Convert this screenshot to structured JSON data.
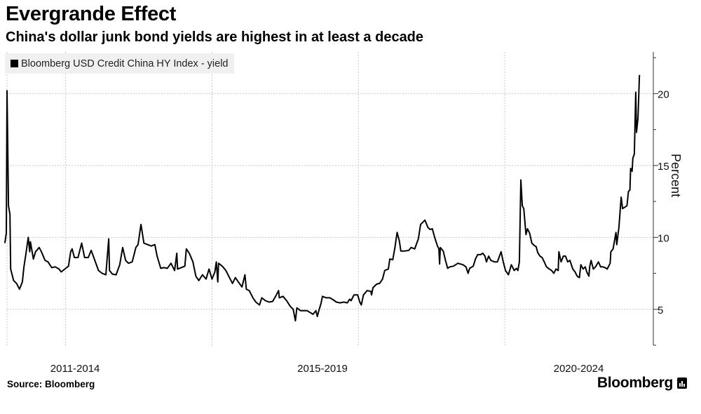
{
  "header": {
    "title": "Evergrande Effect",
    "subtitle": "China's dollar junk bond yields are highest in at least a decade"
  },
  "footer": {
    "source": "Source: Bloomberg",
    "brand": "Bloomberg"
  },
  "chart_data": {
    "type": "line",
    "title": "Evergrande Effect",
    "subtitle": "China's dollar junk bond yields are highest in at least a decade",
    "ylabel": "Percent",
    "xlabel": "",
    "legend": {
      "placement": "top-left",
      "entries": [
        "Bloomberg USD Credit China HY Index - yield"
      ]
    },
    "xlim": [
      2013.2,
      2022.03
    ],
    "ylim": [
      2.5,
      22.9
    ],
    "y_axis_side": "right",
    "y_ticks": [
      5,
      10,
      15,
      20
    ],
    "y_tick_labels": [
      "5",
      "10",
      "15",
      "20"
    ],
    "x_gridlines": [
      2014,
      2016,
      2018,
      2020
    ],
    "x_tick_labels": [
      {
        "label": "2011-2014",
        "at": 2014.13
      },
      {
        "label": "2015-2019",
        "at": 2017.51
      },
      {
        "label": "2020-2024",
        "at": 2021.01
      }
    ],
    "grid": true,
    "colors": {
      "line": "#000000",
      "grid": "#c8c8c8",
      "legend_bg": "#f0f0f0"
    },
    "series": [
      {
        "name": "Bloomberg USD Credit China HY Index - yield",
        "points": [
          [
            2013.17,
            9.6
          ],
          [
            2013.19,
            10.3
          ],
          [
            2013.2,
            20.2
          ],
          [
            2013.21,
            16.6
          ],
          [
            2013.22,
            12.2
          ],
          [
            2013.24,
            11.6
          ],
          [
            2013.25,
            7.8
          ],
          [
            2013.29,
            7.0
          ],
          [
            2013.33,
            6.8
          ],
          [
            2013.37,
            6.4
          ],
          [
            2013.41,
            6.9
          ],
          [
            2013.43,
            7.9
          ],
          [
            2013.46,
            8.9
          ],
          [
            2013.49,
            10.0
          ],
          [
            2013.51,
            9.0
          ],
          [
            2013.52,
            9.7
          ],
          [
            2013.56,
            8.5
          ],
          [
            2013.59,
            9.0
          ],
          [
            2013.64,
            9.3
          ],
          [
            2013.67,
            9.0
          ],
          [
            2013.72,
            8.4
          ],
          [
            2013.76,
            8.3
          ],
          [
            2013.81,
            7.9
          ],
          [
            2013.86,
            7.95
          ],
          [
            2013.91,
            7.8
          ],
          [
            2013.94,
            7.6
          ],
          [
            2013.99,
            7.8
          ],
          [
            2014.04,
            8.0
          ],
          [
            2014.07,
            9.0
          ],
          [
            2014.09,
            9.2
          ],
          [
            2014.12,
            8.6
          ],
          [
            2014.17,
            8.6
          ],
          [
            2014.22,
            9.6
          ],
          [
            2014.26,
            8.6
          ],
          [
            2014.31,
            8.6
          ],
          [
            2014.35,
            9.1
          ],
          [
            2014.4,
            8.4
          ],
          [
            2014.45,
            7.7
          ],
          [
            2014.5,
            7.5
          ],
          [
            2014.55,
            7.4
          ],
          [
            2014.59,
            9.9
          ],
          [
            2014.6,
            7.7
          ],
          [
            2014.64,
            7.45
          ],
          [
            2014.69,
            7.4
          ],
          [
            2014.74,
            8.1
          ],
          [
            2014.78,
            9.3
          ],
          [
            2014.82,
            8.4
          ],
          [
            2014.86,
            8.2
          ],
          [
            2014.91,
            8.3
          ],
          [
            2014.96,
            9.3
          ],
          [
            2014.99,
            9.5
          ],
          [
            2015.03,
            10.9
          ],
          [
            2015.07,
            9.6
          ],
          [
            2015.12,
            9.5
          ],
          [
            2015.17,
            9.4
          ],
          [
            2015.22,
            9.5
          ],
          [
            2015.25,
            8.7
          ],
          [
            2015.3,
            7.85
          ],
          [
            2015.34,
            7.9
          ],
          [
            2015.39,
            7.85
          ],
          [
            2015.44,
            8.2
          ],
          [
            2015.49,
            7.7
          ],
          [
            2015.52,
            8.9
          ],
          [
            2015.53,
            7.8
          ],
          [
            2015.58,
            7.9
          ],
          [
            2015.63,
            8.0
          ],
          [
            2015.65,
            9.2
          ],
          [
            2015.69,
            8.9
          ],
          [
            2015.74,
            8.3
          ],
          [
            2015.78,
            7.3
          ],
          [
            2015.82,
            7.0
          ],
          [
            2015.87,
            7.4
          ],
          [
            2015.92,
            7.1
          ],
          [
            2015.96,
            7.8
          ],
          [
            2016.0,
            7.1
          ],
          [
            2016.04,
            7.6
          ],
          [
            2016.06,
            8.3
          ],
          [
            2016.08,
            6.9
          ],
          [
            2016.09,
            8.2
          ],
          [
            2016.14,
            8.0
          ],
          [
            2016.19,
            7.7
          ],
          [
            2016.24,
            7.2
          ],
          [
            2016.28,
            6.8
          ],
          [
            2016.32,
            7.2
          ],
          [
            2016.36,
            6.9
          ],
          [
            2016.41,
            6.55
          ],
          [
            2016.45,
            7.4
          ],
          [
            2016.47,
            6.4
          ],
          [
            2016.51,
            6.3
          ],
          [
            2016.56,
            5.8
          ],
          [
            2016.6,
            5.5
          ],
          [
            2016.65,
            5.3
          ],
          [
            2016.68,
            5.8
          ],
          [
            2016.73,
            5.6
          ],
          [
            2016.78,
            5.5
          ],
          [
            2016.83,
            5.55
          ],
          [
            2016.87,
            5.9
          ],
          [
            2016.91,
            6.3
          ],
          [
            2016.92,
            5.8
          ],
          [
            2016.97,
            5.9
          ],
          [
            2017.02,
            5.6
          ],
          [
            2017.07,
            5.2
          ],
          [
            2017.11,
            5.0
          ],
          [
            2017.14,
            4.2
          ],
          [
            2017.16,
            5.1
          ],
          [
            2017.21,
            4.9
          ],
          [
            2017.26,
            4.9
          ],
          [
            2017.3,
            4.9
          ],
          [
            2017.35,
            4.75
          ],
          [
            2017.38,
            4.65
          ],
          [
            2017.42,
            4.9
          ],
          [
            2017.44,
            4.5
          ],
          [
            2017.46,
            4.9
          ],
          [
            2017.49,
            5.4
          ],
          [
            2017.51,
            5.9
          ],
          [
            2017.56,
            5.8
          ],
          [
            2017.61,
            5.8
          ],
          [
            2017.66,
            5.65
          ],
          [
            2017.7,
            5.5
          ],
          [
            2017.75,
            5.45
          ],
          [
            2017.8,
            5.5
          ],
          [
            2017.85,
            5.45
          ],
          [
            2017.88,
            5.7
          ],
          [
            2017.9,
            5.6
          ],
          [
            2017.94,
            6.0
          ],
          [
            2017.99,
            6.0
          ],
          [
            2018.02,
            5.5
          ],
          [
            2018.04,
            5.3
          ],
          [
            2018.07,
            6.0
          ],
          [
            2018.12,
            6.3
          ],
          [
            2018.17,
            6.25
          ],
          [
            2018.18,
            6.0
          ],
          [
            2018.2,
            6.5
          ],
          [
            2018.25,
            6.75
          ],
          [
            2018.29,
            6.8
          ],
          [
            2018.33,
            7.1
          ],
          [
            2018.36,
            7.7
          ],
          [
            2018.41,
            7.8
          ],
          [
            2018.43,
            8.5
          ],
          [
            2018.47,
            8.45
          ],
          [
            2018.5,
            9.3
          ],
          [
            2018.53,
            10.35
          ],
          [
            2018.56,
            9.75
          ],
          [
            2018.58,
            9.05
          ],
          [
            2018.63,
            9.05
          ],
          [
            2018.69,
            9.1
          ],
          [
            2018.72,
            9.3
          ],
          [
            2018.77,
            9.2
          ],
          [
            2018.82,
            9.9
          ],
          [
            2018.85,
            10.9
          ],
          [
            2018.88,
            11.05
          ],
          [
            2018.91,
            11.2
          ],
          [
            2018.95,
            10.7
          ],
          [
            2018.98,
            10.55
          ],
          [
            2019.01,
            10.6
          ],
          [
            2019.04,
            10.05
          ],
          [
            2019.08,
            9.4
          ],
          [
            2019.1,
            9.2
          ],
          [
            2019.11,
            8.15
          ],
          [
            2019.12,
            9.3
          ],
          [
            2019.16,
            9.05
          ],
          [
            2019.19,
            8.4
          ],
          [
            2019.22,
            7.85
          ],
          [
            2019.25,
            7.95
          ],
          [
            2019.3,
            8.0
          ],
          [
            2019.36,
            8.2
          ],
          [
            2019.43,
            8.1
          ],
          [
            2019.47,
            7.95
          ],
          [
            2019.5,
            7.5
          ],
          [
            2019.52,
            7.85
          ],
          [
            2019.57,
            8.0
          ],
          [
            2019.6,
            8.5
          ],
          [
            2019.63,
            8.8
          ],
          [
            2019.67,
            8.8
          ],
          [
            2019.7,
            8.9
          ],
          [
            2019.73,
            8.7
          ],
          [
            2019.75,
            8.3
          ],
          [
            2019.78,
            8.7
          ],
          [
            2019.81,
            8.4
          ],
          [
            2019.86,
            8.3
          ],
          [
            2019.9,
            8.3
          ],
          [
            2019.95,
            9.0
          ],
          [
            2019.98,
            8.3
          ],
          [
            2020.01,
            7.7
          ],
          [
            2020.05,
            7.4
          ],
          [
            2020.09,
            8.1
          ],
          [
            2020.13,
            7.7
          ],
          [
            2020.16,
            7.85
          ],
          [
            2020.18,
            7.7
          ],
          [
            2020.2,
            8.3
          ],
          [
            2020.22,
            14.0
          ],
          [
            2020.24,
            12.2
          ],
          [
            2020.26,
            12.0
          ],
          [
            2020.29,
            10.2
          ],
          [
            2020.31,
            10.6
          ],
          [
            2020.34,
            10.3
          ],
          [
            2020.37,
            9.6
          ],
          [
            2020.4,
            9.45
          ],
          [
            2020.43,
            9.35
          ],
          [
            2020.45,
            8.95
          ],
          [
            2020.48,
            8.7
          ],
          [
            2020.51,
            8.6
          ],
          [
            2020.54,
            8.3
          ],
          [
            2020.57,
            7.95
          ],
          [
            2020.61,
            7.8
          ],
          [
            2020.64,
            7.7
          ],
          [
            2020.67,
            7.5
          ],
          [
            2020.7,
            7.8
          ],
          [
            2020.73,
            7.7
          ],
          [
            2020.74,
            9.0
          ],
          [
            2020.77,
            8.3
          ],
          [
            2020.8,
            8.7
          ],
          [
            2020.83,
            8.7
          ],
          [
            2020.86,
            8.3
          ],
          [
            2020.89,
            8.4
          ],
          [
            2020.93,
            7.8
          ],
          [
            2020.96,
            7.6
          ],
          [
            2020.99,
            7.3
          ],
          [
            2021.02,
            7.2
          ],
          [
            2021.04,
            8.1
          ],
          [
            2021.07,
            7.8
          ],
          [
            2021.1,
            7.95
          ],
          [
            2021.12,
            7.6
          ],
          [
            2021.15,
            7.3
          ],
          [
            2021.16,
            7.95
          ],
          [
            2021.18,
            8.4
          ],
          [
            2021.21,
            7.8
          ],
          [
            2021.24,
            7.95
          ],
          [
            2021.28,
            8.3
          ],
          [
            2021.31,
            7.95
          ],
          [
            2021.34,
            7.95
          ],
          [
            2021.37,
            7.9
          ],
          [
            2021.4,
            7.8
          ],
          [
            2021.44,
            8.2
          ],
          [
            2021.45,
            9.0
          ],
          [
            2021.48,
            9.2
          ],
          [
            2021.52,
            10.35
          ],
          [
            2021.53,
            9.5
          ],
          [
            2021.56,
            10.7
          ],
          [
            2021.59,
            12.8
          ],
          [
            2021.61,
            12.0
          ],
          [
            2021.64,
            12.1
          ],
          [
            2021.67,
            12.2
          ],
          [
            2021.69,
            13.2
          ],
          [
            2021.71,
            13.3
          ],
          [
            2021.72,
            14.8
          ],
          [
            2021.74,
            14.6
          ],
          [
            2021.75,
            15.5
          ],
          [
            2021.77,
            15.8
          ],
          [
            2021.79,
            20.1
          ],
          [
            2021.8,
            17.3
          ],
          [
            2021.82,
            18.3
          ],
          [
            2021.84,
            21.3
          ]
        ]
      }
    ]
  }
}
